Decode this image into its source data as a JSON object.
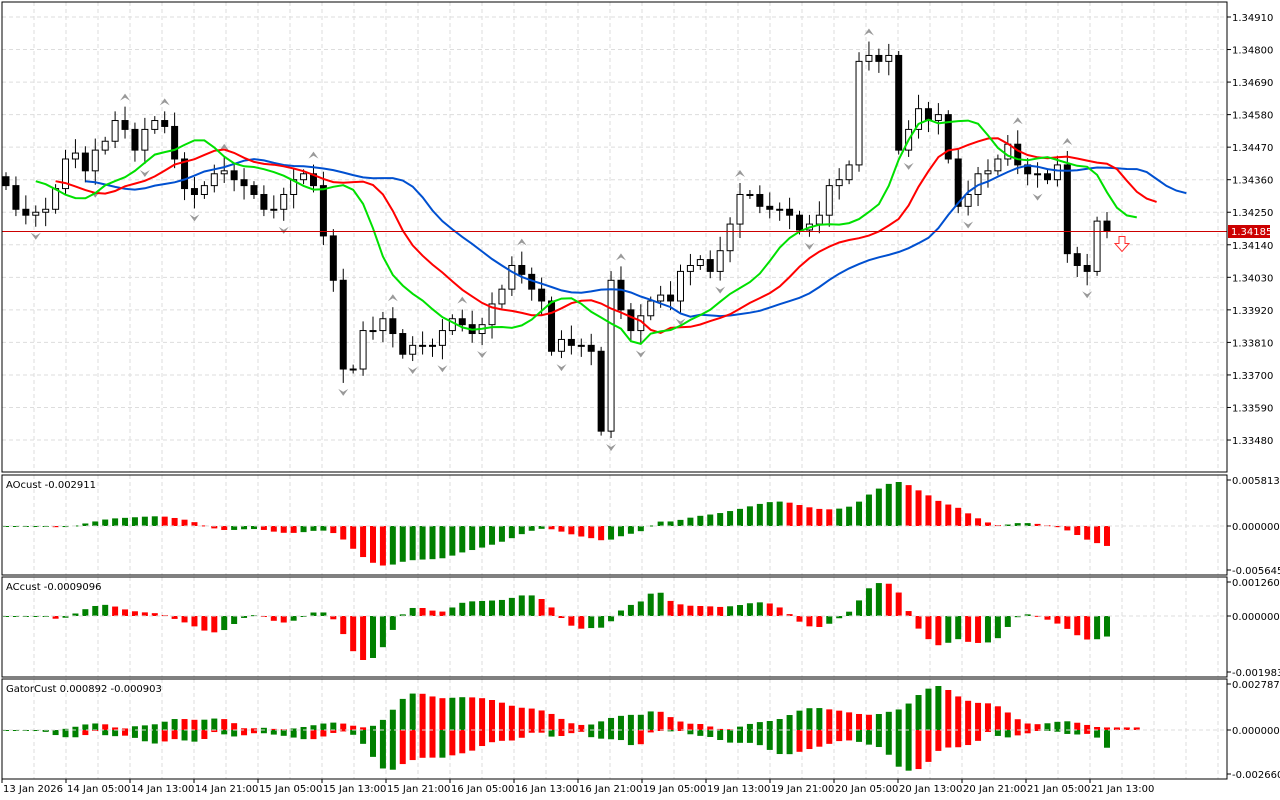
{
  "chart_data": {
    "type": "candlestick",
    "symbol_timeframe": "H1",
    "price_axis": [
      "1.34910",
      "1.34800",
      "1.34690",
      "1.34580",
      "1.34470",
      "1.34360",
      "1.34250",
      "1.34140",
      "1.34030",
      "1.33920",
      "1.33810",
      "1.33700",
      "1.33590",
      "1.33480"
    ],
    "ylim": [
      1.3343,
      1.3496
    ],
    "current_price": "1.34185",
    "time_axis": [
      "13 Jan 2026",
      "14 Jan 05:00",
      "14 Jan 13:00",
      "14 Jan 21:00",
      "15 Jan 05:00",
      "15 Jan 13:00",
      "15 Jan 21:00",
      "16 Jan 05:00",
      "16 Jan 13:00",
      "16 Jan 21:00",
      "19 Jan 05:00",
      "19 Jan 13:00",
      "19 Jan 21:00",
      "20 Jan 05:00",
      "20 Jan 13:00",
      "20 Jan 21:00",
      "21 Jan 05:00",
      "21 Jan 13:00"
    ],
    "closes": [
      1.3434,
      1.3426,
      1.3424,
      1.3425,
      1.3426,
      1.3433,
      1.3443,
      1.3445,
      1.3439,
      1.3446,
      1.3449,
      1.3456,
      1.3453,
      1.3446,
      1.3453,
      1.3456,
      1.3454,
      1.3443,
      1.3433,
      1.3431,
      1.3434,
      1.3438,
      1.3439,
      1.3436,
      1.3434,
      1.3431,
      1.3426,
      1.3426,
      1.3431,
      1.3436,
      1.3438,
      1.3434,
      1.3417,
      1.3402,
      1.3372,
      1.3372,
      1.3385,
      1.3385,
      1.3389,
      1.3384,
      1.3377,
      1.338,
      1.338,
      1.338,
      1.3385,
      1.3389,
      1.3387,
      1.3384,
      1.3387,
      1.3394,
      1.3399,
      1.3407,
      1.3404,
      1.3399,
      1.3395,
      1.3378,
      1.3382,
      1.338,
      1.338,
      1.3378,
      1.3351,
      1.3402,
      1.3392,
      1.3385,
      1.339,
      1.3395,
      1.3397,
      1.3395,
      1.3405,
      1.3407,
      1.3409,
      1.3405,
      1.3412,
      1.3421,
      1.3431,
      1.3431,
      1.3427,
      1.3426,
      1.3426,
      1.3424,
      1.3419,
      1.3421,
      1.3424,
      1.3434,
      1.3436,
      1.3441,
      1.3476,
      1.3478,
      1.3476,
      1.3478,
      1.3446,
      1.3453,
      1.346,
      1.3456,
      1.3458,
      1.3443,
      1.3427,
      1.3431,
      1.3438,
      1.3439,
      1.3443,
      1.3448,
      1.3441,
      1.3438,
      1.3438,
      1.3436,
      1.3441,
      1.3411,
      1.3407,
      1.3405,
      1.3422,
      1.34185
    ],
    "alligator_colors": {
      "jaw": "#0050d0",
      "teeth": "#ff0000",
      "lips": "#00e000"
    },
    "indicators": [
      {
        "name": "AOcust",
        "label": "AOcust -0.002911",
        "axis": [
          "0.005813",
          "0.000000",
          "-0.005645"
        ]
      },
      {
        "name": "ACcust",
        "label": "ACcust -0.0009096",
        "axis": [
          "0.0012602",
          "0.0000000",
          "-0.0019838"
        ]
      },
      {
        "name": "GatorCust",
        "label": "GatorCust 0.000892 -0.000903",
        "axis": [
          "0.002787",
          "0.000000",
          "-0.002660"
        ]
      }
    ],
    "up_color": "#008000",
    "down_color": "#ff0000",
    "signal": "sell-arrow"
  }
}
